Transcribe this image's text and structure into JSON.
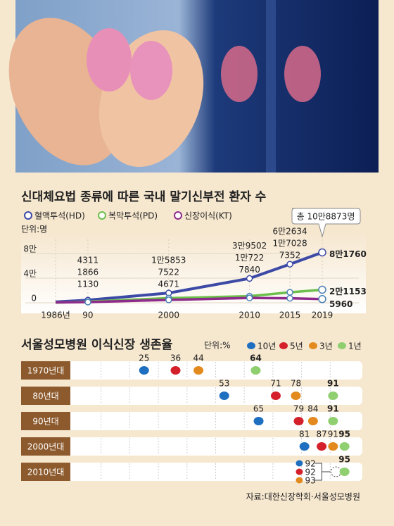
{
  "chart_data": [
    {
      "type": "line",
      "title": "신대체요법 종류에 따른 국내 말기신부전 환자 수",
      "unit_label": "단위:명",
      "x": [
        1986,
        1990,
        2000,
        2010,
        2015,
        2019
      ],
      "xlim": [
        1986,
        2019
      ],
      "xticks": [
        {
          "value": 1986,
          "label": "1986년"
        },
        {
          "value": 1990,
          "label": "90"
        },
        2000,
        2010,
        2015,
        2019
      ],
      "ylim": [
        0,
        100000
      ],
      "yticks": [
        0,
        {
          "value": 40000,
          "label": "4만"
        },
        {
          "value": 80000,
          "label": "8만"
        }
      ],
      "grid": true,
      "annotation": "총 10만8873명",
      "series": [
        {
          "name": "혈액투석(HD)",
          "color": "#3c4aa6",
          "values": [
            1500,
            4311,
            15853,
            39502,
            62634,
            81760
          ],
          "value_labels": [
            null,
            "4311",
            "1만5853",
            "3만9502",
            "6만2634",
            "8만1760"
          ]
        },
        {
          "name": "복막투석(PD)",
          "color": "#6cbf4a",
          "values": [
            300,
            1866,
            7522,
            10722,
            17028,
            21153
          ],
          "value_labels": [
            null,
            "1866",
            "7522",
            "1만722",
            "1만7028",
            "2만1153"
          ]
        },
        {
          "name": "신장이식(KT)",
          "color": "#8e2a8c",
          "values": [
            500,
            1130,
            4671,
            7840,
            7352,
            5960
          ],
          "value_labels": [
            null,
            "1130",
            "4671",
            "7840",
            "7352",
            "5960"
          ]
        }
      ]
    },
    {
      "type": "dot",
      "title": "서울성모병원 이식신장 생존율",
      "unit_label": "단위:%",
      "categories": [
        "1970년대",
        "80년대",
        "90년대",
        "2000년대",
        "2010년대"
      ],
      "xlim": [
        0,
        100
      ],
      "xticks": [
        10,
        20,
        30,
        40,
        50,
        60,
        70,
        80,
        90
      ],
      "grid": true,
      "series": [
        {
          "name": "10년",
          "color": "#1f6fc0",
          "values": [
            25,
            53,
            65,
            81,
            92
          ]
        },
        {
          "name": "5년",
          "color": "#d4202a",
          "values": [
            36,
            71,
            79,
            87,
            92
          ]
        },
        {
          "name": "3년",
          "color": "#e38a1e",
          "values": [
            44,
            78,
            84,
            91,
            93
          ]
        },
        {
          "name": "1년",
          "color": "#8fcf6f",
          "values": [
            64,
            91,
            91,
            95,
            95
          ]
        }
      ]
    }
  ],
  "source": "자료:대한신장학회·서울성모병원"
}
